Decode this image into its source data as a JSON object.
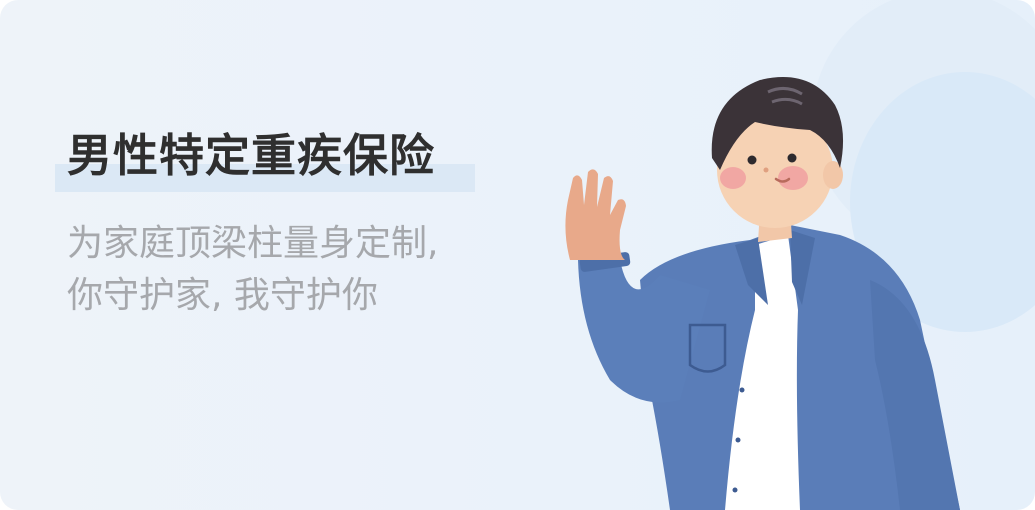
{
  "banner": {
    "title": "男性特定重疾保险",
    "subtitle_line1": "为家庭顶梁柱量身定制,",
    "subtitle_line2": "你守护家, 我守护你"
  },
  "colors": {
    "background": "#eaf2fa",
    "title": "#2f2f2f",
    "subtitle": "#a6a8ac",
    "highlight": "#dbe8f5",
    "jacket": "#5a7db8",
    "skin": "#f6d2b4",
    "hair": "#3b3338"
  },
  "illustration": {
    "icon": "waving-man-illustration"
  }
}
